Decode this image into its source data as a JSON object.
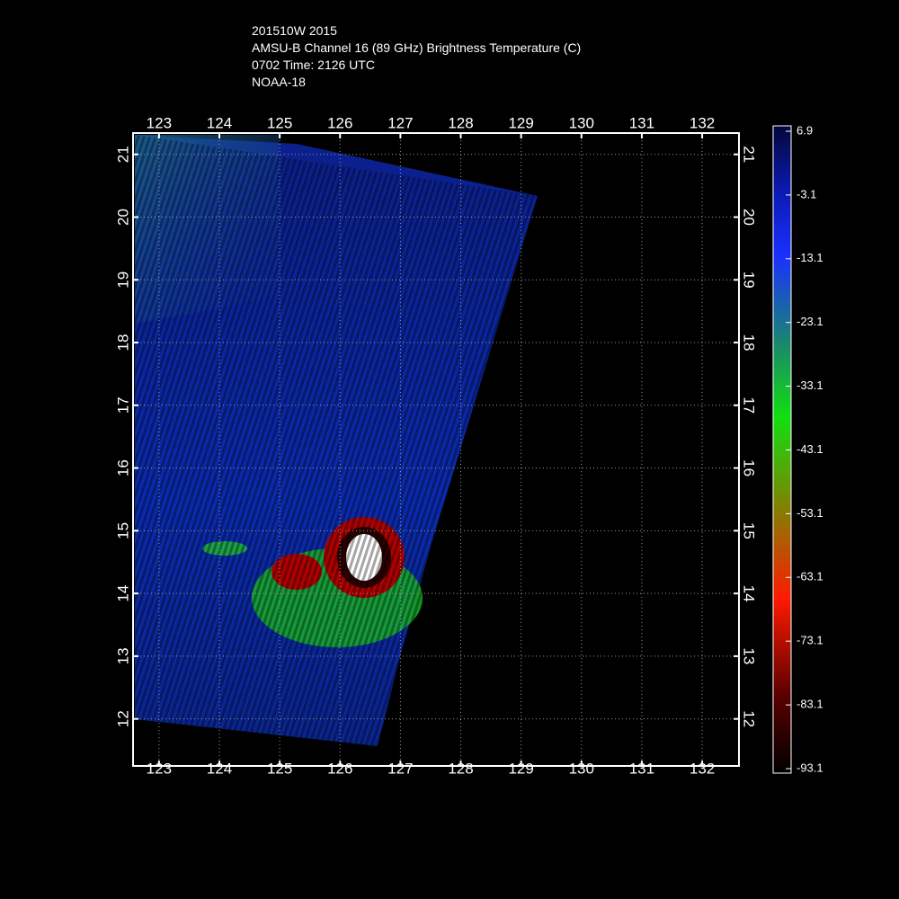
{
  "chart_data": {
    "type": "map",
    "title": [
      "201510W 2015",
      "AMSU-B Channel 16 (89 GHz) Brightness Temperature (C)",
      "0702 Time: 2126 UTC",
      "NOAA-18"
    ],
    "xlim": [
      122.57,
      132.61
    ],
    "xticks": [
      123,
      124,
      125,
      126,
      127,
      128,
      129,
      130,
      131,
      132
    ],
    "ylim": [
      11.25,
      21.34
    ],
    "yticks": [
      12,
      13,
      14,
      15,
      16,
      17,
      18,
      19,
      20,
      21
    ],
    "grid": true,
    "colorbar": {
      "lim": [
        -93.1,
        6.9
      ],
      "ticks": [
        6.9,
        -3.1,
        -13.1,
        -23.1,
        -33.1,
        -43.1,
        -53.1,
        -63.1,
        -73.1,
        -83.1,
        -93.1
      ]
    }
  }
}
